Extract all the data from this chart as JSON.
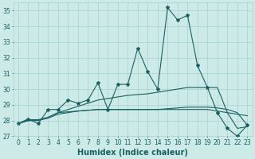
{
  "xlabel": "Humidex (Indice chaleur)",
  "xlim": [
    -0.5,
    23.5
  ],
  "ylim": [
    27,
    35.5
  ],
  "yticks": [
    27,
    28,
    29,
    30,
    31,
    32,
    33,
    34,
    35
  ],
  "xticks": [
    0,
    1,
    2,
    3,
    4,
    5,
    6,
    7,
    8,
    9,
    10,
    11,
    12,
    13,
    14,
    15,
    16,
    17,
    18,
    19,
    20,
    21,
    22,
    23
  ],
  "bg_color": "#cceae8",
  "grid_color": "#aacfcd",
  "line_color": "#1a6060",
  "line1": [
    27.8,
    28.1,
    27.8,
    28.7,
    28.7,
    29.3,
    29.1,
    29.3,
    30.4,
    28.7,
    30.3,
    30.3,
    32.6,
    31.1,
    30.0,
    35.2,
    34.4,
    34.7,
    31.5,
    30.1,
    28.5,
    27.5,
    27.0,
    27.7
  ],
  "line2": [
    27.8,
    28.05,
    28.05,
    28.2,
    28.5,
    28.55,
    28.6,
    28.65,
    28.7,
    28.7,
    28.7,
    28.7,
    28.7,
    28.7,
    28.7,
    28.7,
    28.7,
    28.7,
    28.7,
    28.7,
    28.6,
    28.5,
    28.4,
    28.3
  ],
  "line3": [
    27.8,
    28.0,
    28.0,
    28.2,
    28.5,
    28.7,
    28.9,
    29.1,
    29.3,
    29.4,
    29.5,
    29.6,
    29.65,
    29.7,
    29.8,
    29.9,
    30.0,
    30.1,
    30.1,
    30.1,
    30.1,
    28.5,
    27.5,
    27.6
  ],
  "line4": [
    27.8,
    28.0,
    28.0,
    28.15,
    28.4,
    28.5,
    28.6,
    28.65,
    28.7,
    28.7,
    28.7,
    28.7,
    28.7,
    28.7,
    28.7,
    28.75,
    28.8,
    28.85,
    28.85,
    28.85,
    28.8,
    28.7,
    28.5,
    27.7
  ],
  "marker": "*",
  "markersize": 3,
  "linewidth": 0.8,
  "tick_fontsize": 5.5,
  "xlabel_fontsize": 7
}
